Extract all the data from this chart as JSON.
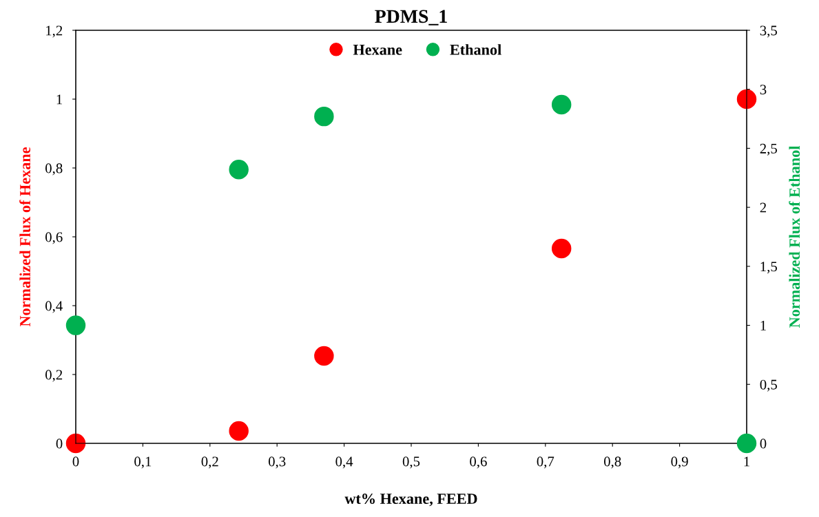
{
  "chart_data": {
    "type": "scatter",
    "title": "PDMS_1",
    "xlabel": "wt% Hexane, FEED",
    "ylabel": "Normalized Flux of Hexane",
    "y2label": "Normalized Flux of Ethanol",
    "x": [
      0,
      0.243,
      0.37,
      0.724,
      1
    ],
    "series": [
      {
        "name": "Hexane",
        "color": "#ff0000",
        "values": [
          0,
          0.036,
          0.254,
          0.566,
          1.0
        ]
      },
      {
        "name": "Ethanol",
        "color": "#00b050",
        "values": [
          1.0,
          2.32,
          2.77,
          2.87,
          0
        ],
        "axis": "y2"
      }
    ],
    "xlim": [
      0,
      1
    ],
    "xticks": [
      0,
      {
        "value": 0.1,
        "label": "0,1"
      },
      {
        "value": 0.2,
        "label": "0,2"
      },
      {
        "value": 0.3,
        "label": "0,3"
      },
      {
        "value": 0.4,
        "label": "0,4"
      },
      {
        "value": 0.5,
        "label": "0,5"
      },
      {
        "value": 0.6,
        "label": "0,6"
      },
      {
        "value": 0.7,
        "label": "0,7"
      },
      {
        "value": 0.8,
        "label": "0,8"
      },
      {
        "value": 0.9,
        "label": "0,9"
      },
      1
    ],
    "ylim": [
      0,
      1.2
    ],
    "yticks": [
      0,
      {
        "value": 0.2,
        "label": "0,2"
      },
      {
        "value": 0.4,
        "label": "0,4"
      },
      {
        "value": 0.6,
        "label": "0,6"
      },
      {
        "value": 0.8,
        "label": "0,8"
      },
      1,
      {
        "value": 1.2,
        "label": "1,2"
      }
    ],
    "y2lim": [
      0,
      3.5
    ],
    "y2ticks": [
      0,
      {
        "value": 0.5,
        "label": "0,5"
      },
      1,
      {
        "value": 1.5,
        "label": "1,5"
      },
      2,
      {
        "value": 2.5,
        "label": "2,5"
      },
      3,
      {
        "value": 3.5,
        "label": "3,5"
      }
    ],
    "marker": "circle",
    "grid": false,
    "legend": "top"
  }
}
